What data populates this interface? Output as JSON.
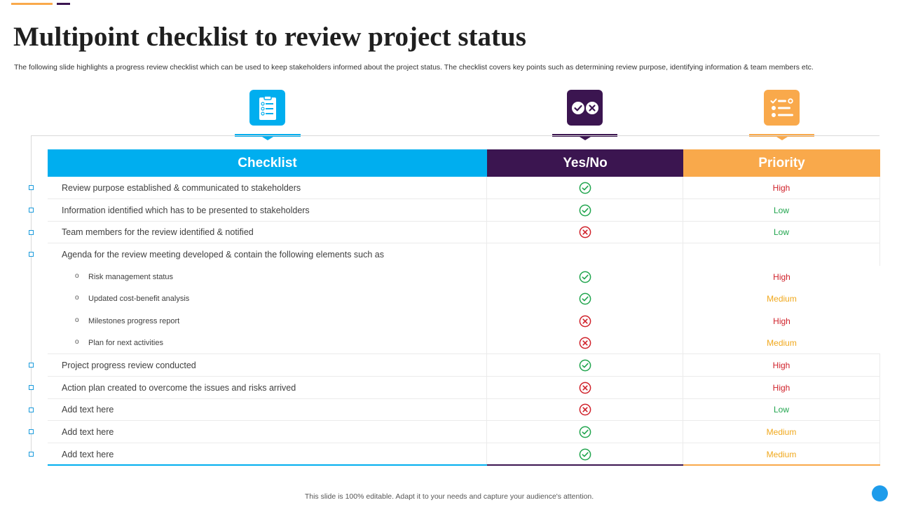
{
  "title": "Multipoint checklist to review project status",
  "subtitle": "The following slide highlights a progress review checklist which can be used to keep stakeholders informed about the project status. The checklist covers key points such as determining  review purpose, identifying information & team members etc.",
  "colors": {
    "checklist": "#00AEEF",
    "yesno": "#3B1550",
    "priority": "#F9A94B",
    "check": "#21A54E",
    "cross": "#D0212A",
    "high": "#D0212A",
    "low": "#21A54E",
    "medium": "#F0A81C"
  },
  "icons": {
    "checklist": "clipboard-icon",
    "yesno": "check-cross-icon",
    "priority": "list-icon"
  },
  "headers": {
    "checklist": "Checklist",
    "yesno": "Yes/No",
    "priority": "Priority"
  },
  "rows": [
    {
      "text": "Review purpose established & communicated to stakeholders",
      "yesno": "yes",
      "priority": "High"
    },
    {
      "text": "Information identified which has to be presented to stakeholders",
      "yesno": "yes",
      "priority": "Low"
    },
    {
      "text": "Team members for the review identified & notified",
      "yesno": "no",
      "priority": "Low"
    },
    {
      "text": "Agenda for the review meeting developed & contain the following elements such as",
      "yesno": "",
      "priority": ""
    },
    {
      "text": "Risk management status",
      "yesno": "yes",
      "priority": "High"
    },
    {
      "text": "Updated cost-benefit analysis",
      "yesno": "yes",
      "priority": "Medium"
    },
    {
      "text": "Milestones progress report",
      "yesno": "no",
      "priority": "High"
    },
    {
      "text": "Plan  for next activities",
      "yesno": "no",
      "priority": "Medium"
    },
    {
      "text": "Project progress review conducted",
      "yesno": "yes",
      "priority": "High"
    },
    {
      "text": "Action plan created to overcome the issues and risks arrived",
      "yesno": "no",
      "priority": "High"
    },
    {
      "text": "Add text here",
      "yesno": "no",
      "priority": "Low"
    },
    {
      "text": "Add text here",
      "yesno": "yes",
      "priority": "Medium"
    },
    {
      "text": "Add text here",
      "yesno": "yes",
      "priority": "Medium"
    }
  ],
  "footer": "This slide is 100% editable.  Adapt it to your needs and capture your audience's attention."
}
